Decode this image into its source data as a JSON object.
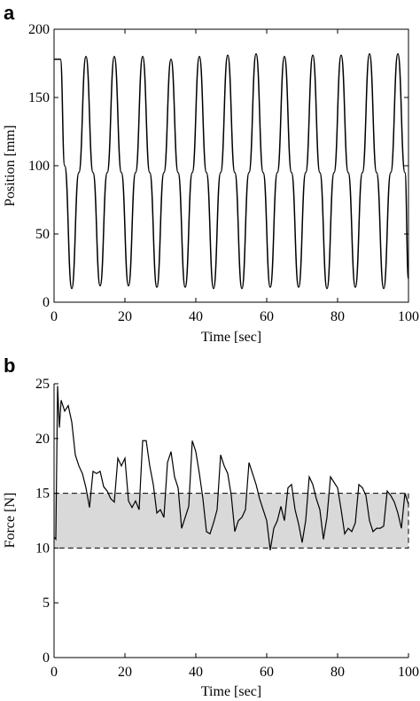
{
  "chart_data": [
    {
      "panel_label": "a",
      "type": "line",
      "title": "",
      "xlabel": "Time [sec]",
      "ylabel": "Position [mm]",
      "xlim": [
        0,
        100
      ],
      "ylim": [
        0,
        200
      ],
      "xticks": [
        0,
        20,
        40,
        60,
        80,
        100
      ],
      "yticks": [
        0,
        50,
        100,
        150,
        200
      ],
      "grid": false,
      "line_color": "#000000",
      "series": [
        {
          "x": [
            0,
            1.8,
            3,
            5,
            7,
            9,
            11,
            13,
            15,
            17,
            19,
            21,
            23,
            25,
            27,
            29,
            31,
            33,
            35,
            37,
            39,
            41,
            43,
            45,
            47,
            49,
            51,
            53,
            55,
            57,
            59,
            61,
            63,
            65,
            67,
            69,
            71,
            73,
            75,
            77,
            79,
            81,
            83,
            85,
            87,
            89,
            91,
            93,
            95,
            97,
            99,
            100
          ],
          "y": [
            178,
            178,
            100,
            10,
            95,
            180,
            95,
            12,
            95,
            180,
            95,
            12,
            95,
            180,
            95,
            11,
            95,
            178,
            95,
            11,
            95,
            180,
            95,
            10,
            95,
            181,
            95,
            10,
            95,
            182,
            95,
            11,
            95,
            180,
            95,
            11,
            95,
            181,
            95,
            10,
            95,
            181,
            95,
            11,
            95,
            182,
            95,
            10,
            95,
            182,
            95,
            17
          ]
        }
      ]
    },
    {
      "panel_label": "b",
      "type": "line",
      "title": "",
      "xlabel": "Time [sec]",
      "ylabel": "Force [N]",
      "xlim": [
        0,
        100
      ],
      "ylim": [
        0,
        25
      ],
      "xticks": [
        0,
        20,
        40,
        60,
        80,
        100
      ],
      "yticks": [
        0,
        5,
        10,
        15,
        20,
        25
      ],
      "grid": false,
      "line_color": "#000000",
      "shaded_band": {
        "ymin": 10,
        "ymax": 15,
        "fill": "#d9d9d9",
        "border": "dashed"
      },
      "series": [
        {
          "x": [
            0,
            0.5,
            1,
            1.5,
            2,
            3,
            4,
            5,
            6,
            7,
            8,
            9,
            10,
            11,
            12,
            13,
            14,
            15,
            16,
            17,
            18,
            19,
            20,
            21,
            22,
            23,
            24,
            25,
            26,
            27,
            28,
            29,
            30,
            31,
            32,
            33,
            34,
            35,
            36,
            37,
            38,
            39,
            40,
            41,
            42,
            43,
            44,
            45,
            46,
            47,
            48,
            49,
            50,
            51,
            52,
            53,
            54,
            55,
            56,
            57,
            58,
            59,
            60,
            61,
            62,
            63,
            64,
            65,
            66,
            67,
            68,
            69,
            70,
            71,
            72,
            73,
            74,
            75,
            76,
            77,
            78,
            79,
            80,
            81,
            82,
            83,
            84,
            85,
            86,
            87,
            88,
            89,
            90,
            91,
            92,
            93,
            94,
            95,
            96,
            97,
            98,
            99,
            100
          ],
          "y": [
            11,
            10.8,
            24.8,
            21,
            23.5,
            22.5,
            23,
            21.5,
            18.5,
            17.5,
            16.8,
            15.5,
            13.7,
            17,
            16.8,
            17,
            15.6,
            15.2,
            14.5,
            14.2,
            18.2,
            17.5,
            18.2,
            14.3,
            13.7,
            14.3,
            13.5,
            19.8,
            19.8,
            17.5,
            15.8,
            13.2,
            13.5,
            12.8,
            17.8,
            18.8,
            16.5,
            15.5,
            11.8,
            12.8,
            13.8,
            19.8,
            18.8,
            16.8,
            14.5,
            11.5,
            11.3,
            12.3,
            13.5,
            18.5,
            17.5,
            16.8,
            14.8,
            11.5,
            12.5,
            12.8,
            13.5,
            17.8,
            16.8,
            15.8,
            14.5,
            13.5,
            12.5,
            9.8,
            11.8,
            12.5,
            13.8,
            12.5,
            15.5,
            15.8,
            13.5,
            12.2,
            10.5,
            12.5,
            16.5,
            15.8,
            14.5,
            13.5,
            10.8,
            12.8,
            16.5,
            16.0,
            15.5,
            13.5,
            11.3,
            11.8,
            11.5,
            12.3,
            15.8,
            15.5,
            14.8,
            12.5,
            11.5,
            11.8,
            11.8,
            12.0,
            15.2,
            14.8,
            14.2,
            13.2,
            11.8,
            15.0,
            14.0
          ]
        }
      ]
    }
  ]
}
